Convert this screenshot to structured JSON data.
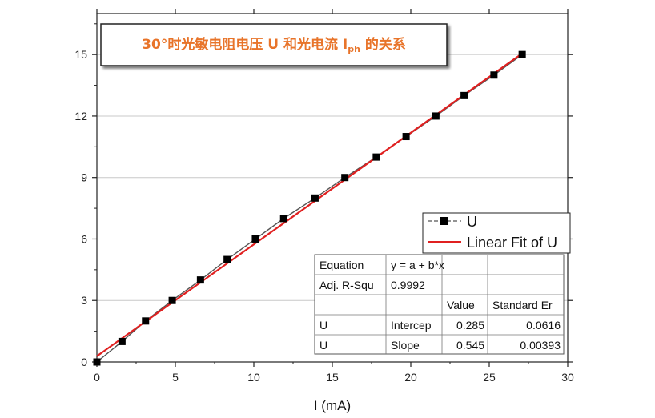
{
  "chart_data": {
    "type": "scatter",
    "title_parts": {
      "before": "30°时光敏电阻电压 U 和光电流 I",
      "subscript": "ph",
      "after": " 的关系"
    },
    "xlabel": "I (mA)",
    "ylabel": "",
    "xlim": [
      0,
      30
    ],
    "ylim": [
      0,
      17
    ],
    "x_ticks": [
      0,
      5,
      10,
      15,
      20,
      25,
      30
    ],
    "y_ticks": [
      0,
      3,
      6,
      9,
      12,
      15
    ],
    "grid": "y-major",
    "series": [
      {
        "name": "U",
        "style": "line+square-markers",
        "color": "#555555",
        "marker_color": "#000000",
        "x": [
          0.0,
          1.6,
          3.1,
          4.8,
          6.6,
          8.3,
          10.1,
          11.9,
          13.9,
          15.8,
          17.8,
          19.7,
          21.6,
          23.4,
          25.3,
          27.1
        ],
        "y": [
          0,
          1,
          2,
          3,
          4,
          5,
          6,
          7,
          8,
          9,
          10,
          11,
          12,
          13,
          14,
          15
        ]
      },
      {
        "name": "Linear Fit of U",
        "style": "line",
        "color": "#e02020",
        "intercept": 0.285,
        "slope": 0.545,
        "x_range": [
          0,
          27.1
        ]
      }
    ],
    "legend_position": "right",
    "fit_table": [
      [
        "Equation",
        "y = a + b*x",
        "",
        ""
      ],
      [
        "Adj. R-Squ",
        "0.9992",
        "",
        ""
      ],
      [
        "",
        "",
        "Value",
        "Standard Er"
      ],
      [
        "U",
        "Intercep",
        "0.285",
        "0.0616"
      ],
      [
        "U",
        "Slope",
        "0.545",
        "0.00393"
      ]
    ]
  }
}
